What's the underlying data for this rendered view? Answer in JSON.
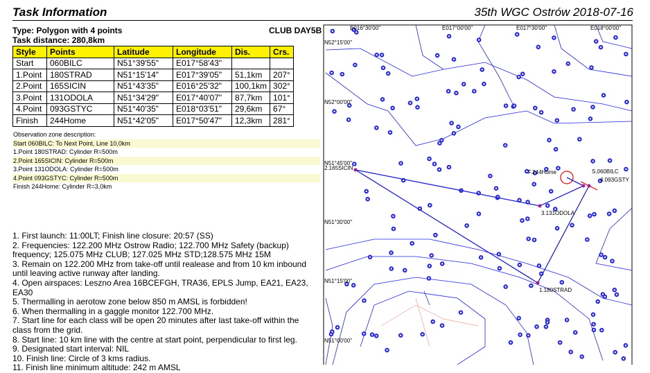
{
  "header": {
    "title": "Task Information",
    "event": "35th WGC Ostrów 2018-07-16"
  },
  "task": {
    "type": "Type: Polygon with 4 points",
    "class": "CLUB DAY5B",
    "distance": "Task distance: 280,8km"
  },
  "table": {
    "header": [
      "Style",
      "Points",
      "Latitude",
      "Longitude",
      "Dis.",
      "Crs."
    ],
    "rows": [
      [
        "Start",
        "060BILC",
        "N51°39'55\"",
        "E017°58'43\""
      ],
      [
        "1.Point",
        "180STRAD",
        "N51°15'14\"",
        "E017°39'05\"",
        "51,1km",
        "207°"
      ],
      [
        "2.Point",
        "165SICIN",
        "N51°43'35\"",
        "E016°25'32\"",
        "100,1km",
        "302°"
      ],
      [
        "3.Point",
        "131ODOLA",
        "N51°34'29\"",
        "E017°40'07\"",
        "87,7km",
        "101°"
      ],
      [
        "4.Point",
        "093GSTYC",
        "N51°40'35\"",
        "E018°03'51\"",
        "29,6km",
        "67°"
      ],
      [
        "Finish",
        "244Home",
        "N51°42'05\"",
        "E017°50'47\"",
        "12,3km",
        "281°"
      ]
    ]
  },
  "observation": {
    "title": "Observation zone description:",
    "lines": [
      "Start 060BILC: To Next Point, Line 10,0km",
      "1.Point 180STRAD: Cylinder R=500m",
      "2.Point 165SICIN: Cylinder R=500m",
      "3.Point 131ODOLA: Cylinder R=500m",
      "4.Point 093GSTYC: Cylinder R=500m",
      "Finish 244Home: Cylinder R=3,0km"
    ]
  },
  "notes": [
    "1. First launch: 11:00LT; Finish line closure: 20:57 (SS)",
    "2. Frequencies: 122.200 MHz Ostrow Radio; 122.700 MHz Safety (backup) frequency; 125.075 MHz CLUB; 127.025 MHz STD;128.575 MHz 15M",
    "3. Remain on 122.200 MHz from take-off until realease and from 10 km inbound until leaving active runway after landing.",
    "4. Open airspaces: Leszno Area 16BCEFGH, TRA36, EPLS Jump, EA21, EA23, EA30",
    "5. Thermalling in aerotow zone below 850 m AMSL is forbidden!",
    "6. When thermalling in a gaggle monitor 122.700 MHz.",
    "7. Start line for each class will be open 20 minutes after last take-off within the class from the grid.",
    "8. Start line: 10 km line with the centre at start point, perpendicular to first leg.",
    "9. Designated start interval: NIL",
    "10. Finish line: Circle of 3 kms radius.",
    "11. Finish line minimum altitude: 242 m AMSL"
  ],
  "map": {
    "lon_labels": [
      "E016°30'00\"",
      "E017°00'00\"",
      "E017°30'00\"",
      "E018°00'00\""
    ],
    "lat_labels": [
      "N52°15'00\"",
      "N52°00'00\"",
      "N51°45'00\"",
      "N51°30'00\"",
      "N51°15'00\"",
      "N51°00'00\""
    ],
    "waypoints": [
      "2.165SICIN",
      "F.244Home",
      "S.060BILC",
      "4.093GSTY",
      "3.131ODOLA",
      "1.180STRAD"
    ]
  }
}
